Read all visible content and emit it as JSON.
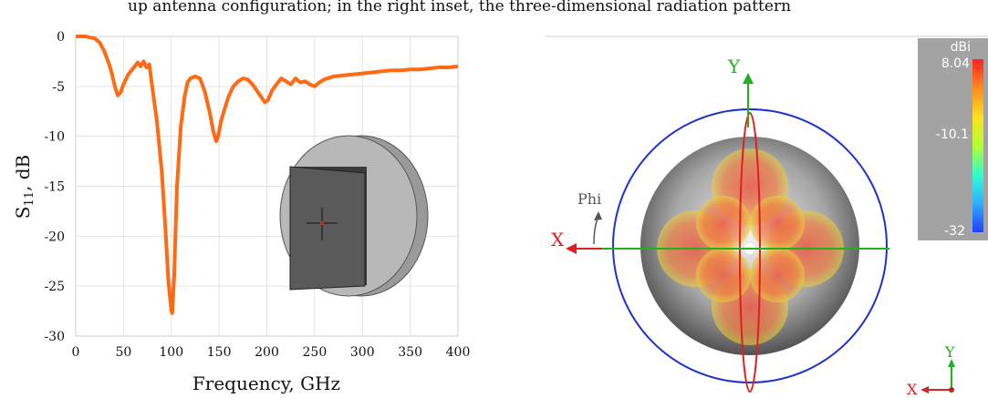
{
  "top_text": "up antenna configuration; in the right inset, the three-dimensional radiation pattern",
  "chart_data": [
    {
      "type": "line",
      "xlabel": "Frequency, GHz",
      "ylabel_main": "S",
      "ylabel_sub": "11",
      "ylabel_unit": ", dB",
      "xlim": [
        0,
        400
      ],
      "ylim": [
        -30,
        0
      ],
      "xticks": [
        "0",
        "50",
        "100",
        "150",
        "200",
        "250",
        "300",
        "350",
        "400"
      ],
      "yticks": [
        "0",
        "-5",
        "-10",
        "-15",
        "-20",
        "-25",
        "-30"
      ],
      "grid": true,
      "line_color": "#ff6a13",
      "x": [
        0,
        5,
        10,
        15,
        20,
        25,
        30,
        35,
        38,
        41,
        44,
        47,
        50,
        55,
        60,
        65,
        68,
        71,
        74,
        77,
        80,
        85,
        90,
        94,
        97,
        100,
        101,
        103,
        106,
        110,
        114,
        117,
        120,
        125,
        130,
        135,
        140,
        144,
        147,
        149,
        152,
        156,
        160,
        165,
        170,
        175,
        180,
        185,
        190,
        195,
        198,
        201,
        205,
        210,
        215,
        220,
        225,
        230,
        235,
        240,
        245,
        250,
        255,
        260,
        270,
        280,
        290,
        300,
        310,
        320,
        330,
        340,
        350,
        360,
        370,
        380,
        390,
        400
      ],
      "y": [
        0,
        0,
        0,
        -0.1,
        -0.2,
        -0.6,
        -1.5,
        -2.8,
        -3.8,
        -5.0,
        -5.9,
        -5.6,
        -4.8,
        -3.8,
        -3.2,
        -2.6,
        -3.0,
        -2.5,
        -3.1,
        -2.8,
        -5.0,
        -8.5,
        -13.5,
        -19.5,
        -24.5,
        -27.5,
        -27.7,
        -24.0,
        -15.0,
        -9.0,
        -6.0,
        -4.6,
        -4.2,
        -4.0,
        -4.2,
        -5.5,
        -7.5,
        -9.5,
        -10.5,
        -10.0,
        -8.5,
        -7.2,
        -6.0,
        -5.0,
        -4.5,
        -4.2,
        -4.3,
        -4.8,
        -5.5,
        -6.2,
        -6.6,
        -6.4,
        -5.5,
        -4.8,
        -4.2,
        -4.5,
        -4.8,
        -4.2,
        -4.6,
        -4.5,
        -4.8,
        -5.0,
        -4.6,
        -4.3,
        -4.0,
        -3.9,
        -3.8,
        -3.7,
        -3.6,
        -3.5,
        -3.4,
        -3.4,
        -3.3,
        -3.3,
        -3.2,
        -3.1,
        -3.1,
        -3.0
      ]
    },
    {
      "type": "heatmap",
      "colorbar": {
        "unit": "dBi",
        "labels": [
          "8.04",
          "-10.1",
          "-32"
        ],
        "max": 8.04,
        "min": -32,
        "colors": [
          "#ff2020",
          "#ff8c20",
          "#ffe020",
          "#b0ff30",
          "#30ffd0",
          "#30b0ff",
          "#2040ff"
        ]
      },
      "axis_labels": {
        "x": "X",
        "y": "Y",
        "phi": "Phi"
      },
      "axis_colors": {
        "x": "#e02020",
        "y": "#20b020",
        "ring": "#2030d0"
      }
    }
  ]
}
